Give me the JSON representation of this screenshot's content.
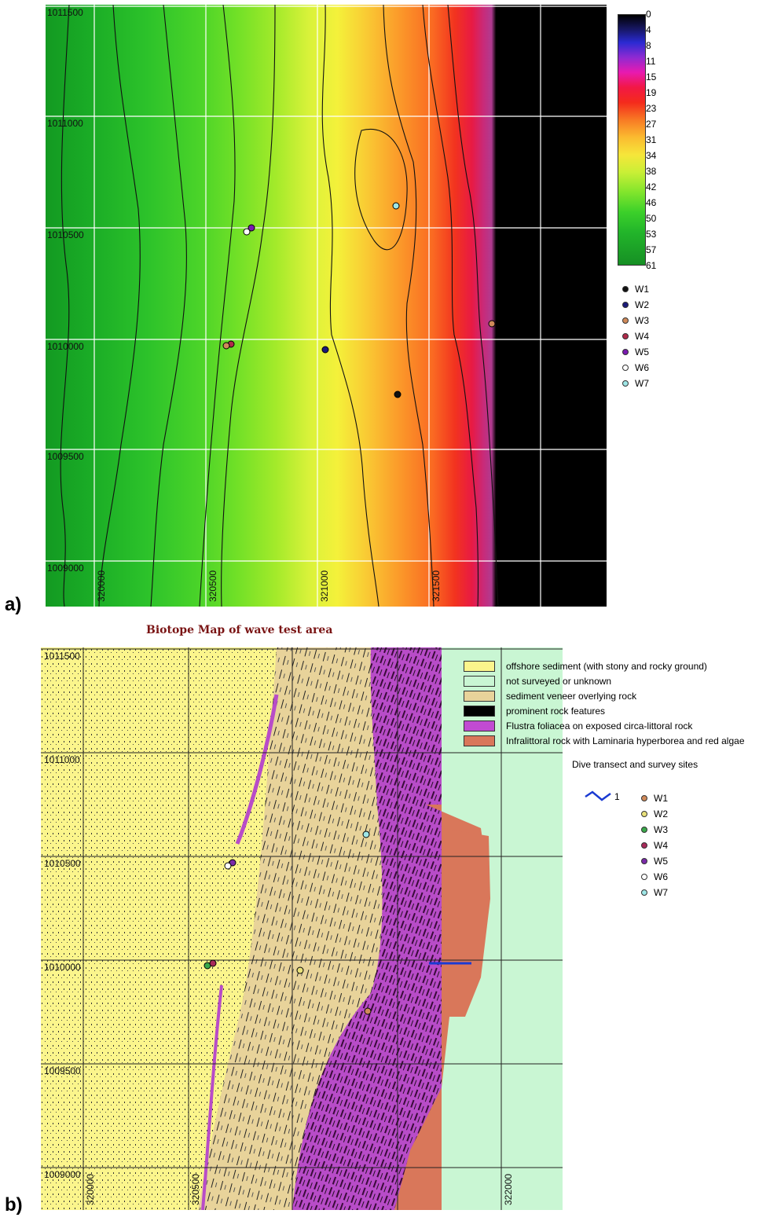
{
  "panel_a": {
    "tag": "a)",
    "y_labels": [
      "1011500",
      "1011000",
      "1010500",
      "1010000",
      "1009500",
      "1009000"
    ],
    "x_labels": [
      "320000",
      "320500",
      "321000",
      "321500"
    ],
    "depth_scale": [
      "0",
      "4",
      "8",
      "11",
      "15",
      "19",
      "23",
      "27",
      "31",
      "34",
      "38",
      "42",
      "46",
      "50",
      "53",
      "57",
      "61"
    ],
    "legend": [
      {
        "label": "W1",
        "color": "#111111"
      },
      {
        "label": "W2",
        "color": "#1a1a7a"
      },
      {
        "label": "W3",
        "color": "#d08a5a"
      },
      {
        "label": "W4",
        "color": "#b02a4a"
      },
      {
        "label": "W5",
        "color": "#7a1ab0"
      },
      {
        "label": "W6",
        "color": "#ffffff"
      },
      {
        "label": "W7",
        "color": "#9ee6e6"
      }
    ]
  },
  "panel_b": {
    "tag": "b)",
    "title": "Biotope Map of wave test area",
    "y_labels": [
      "1011500",
      "1011000",
      "1010500",
      "1010000",
      "1009500",
      "1009000"
    ],
    "x_labels": [
      "320000",
      "320500",
      "322000"
    ],
    "legend": [
      {
        "label": "offshore sediment (with stony and rocky ground)",
        "color": "#fbf58c"
      },
      {
        "label": "not surveyed or unknown",
        "color": "#c9f6d3"
      },
      {
        "label": "sediment veneer overlying rock",
        "color": "#e8d39a"
      },
      {
        "label": "prominent rock features",
        "color": "#000000"
      },
      {
        "label": "Flustra foliacea on exposed circa-littoral rock",
        "color": "#c14bd2"
      },
      {
        "label": "Infralittoral rock with Laminaria hyperborea and red algae",
        "color": "#d9775a"
      }
    ],
    "dive_header": "Dive transect and survey sites",
    "dive_transect_label": "1",
    "sites": [
      {
        "label": "W1",
        "color": "#d08a5a"
      },
      {
        "label": "W2",
        "color": "#e8e07a"
      },
      {
        "label": "W3",
        "color": "#3aa84a"
      },
      {
        "label": "W4",
        "color": "#a82a5a"
      },
      {
        "label": "W5",
        "color": "#7a2aa8"
      },
      {
        "label": "W6",
        "color": "#ffffff"
      },
      {
        "label": "W7",
        "color": "#9ee6e6"
      }
    ]
  }
}
